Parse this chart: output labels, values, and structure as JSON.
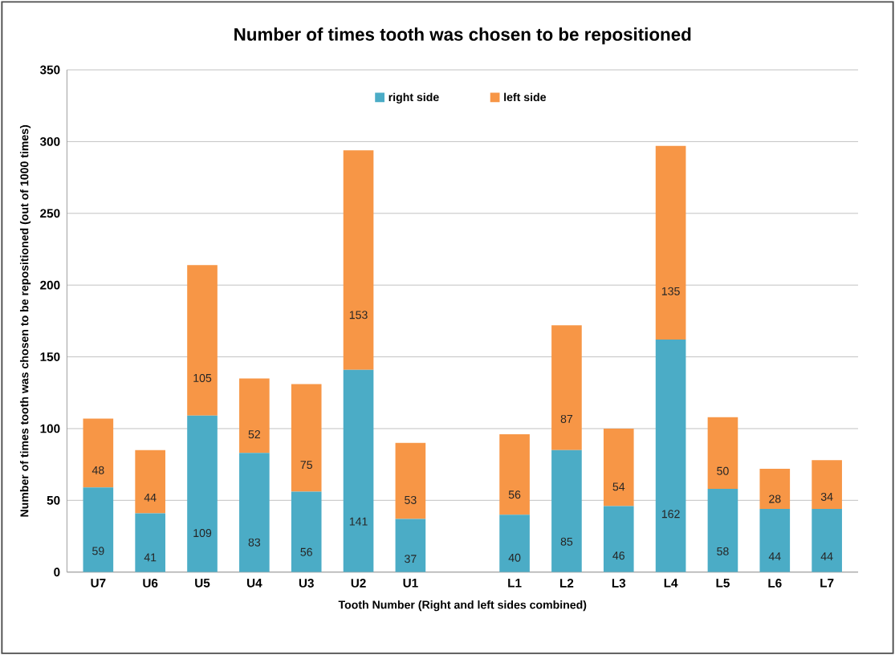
{
  "chart_data": {
    "type": "bar",
    "stacked": true,
    "title": "Number of times tooth was chosen to be repositioned",
    "xlabel": "Tooth Number (Right and left sides combined)",
    "ylabel": "Number of times tooth was chosen to be repositioned (out of 1000 times)",
    "categories": [
      "U7",
      "U6",
      "U5",
      "U4",
      "U3",
      "U2",
      "U1",
      null,
      "L1",
      "L2",
      "L3",
      "L4",
      "L5",
      "L6",
      "L7"
    ],
    "series": [
      {
        "name": "right side",
        "color": "#4bacc6",
        "values": [
          59,
          41,
          109,
          83,
          56,
          141,
          37,
          null,
          40,
          85,
          46,
          162,
          58,
          44,
          44
        ]
      },
      {
        "name": "left side",
        "color": "#f79646",
        "values": [
          48,
          44,
          105,
          52,
          75,
          153,
          53,
          null,
          56,
          87,
          54,
          135,
          50,
          28,
          34
        ]
      }
    ],
    "ylim": [
      0,
      350
    ],
    "yticks": [
      0,
      50,
      100,
      150,
      200,
      250,
      300,
      350
    ],
    "grid": "y",
    "legend": "top",
    "data_labels": true
  }
}
